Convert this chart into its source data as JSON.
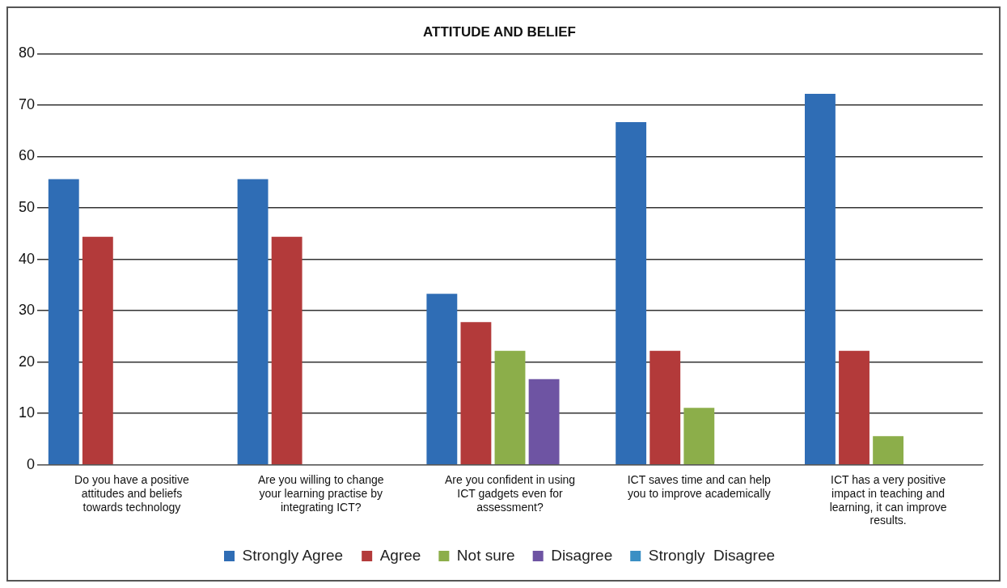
{
  "chart_data": {
    "type": "bar",
    "title": "ATTITUDE AND BELIEF",
    "categories": [
      "Do you have a positive attitudes and beliefs towards technology",
      "Are you willing to change your learning practise by integrating ICT?",
      "Are you confident in using ICT gadgets even for assessment?",
      "ICT saves time and can help you to improve academically",
      "ICT has a very positive impact in teaching and learning, it can improve results."
    ],
    "series": [
      {
        "name": "Strongly Agree",
        "color": "#2f6db5",
        "values": [
          55.6,
          55.6,
          33.3,
          66.7,
          72.2
        ]
      },
      {
        "name": "Agree",
        "color": "#b33a3a",
        "values": [
          44.4,
          44.4,
          27.8,
          22.2,
          22.2
        ]
      },
      {
        "name": "Not sure",
        "color": "#8cae4a",
        "values": [
          null,
          null,
          22.2,
          11.1,
          5.6
        ]
      },
      {
        "name": "Disagree",
        "color": "#6e54a3",
        "values": [
          null,
          null,
          16.7,
          null,
          null
        ]
      },
      {
        "name": "Strongly  Disagree",
        "color": "#3a8fc4",
        "values": [
          null,
          null,
          null,
          null,
          null
        ]
      }
    ],
    "ylim": [
      0,
      80
    ],
    "yticks": [
      0,
      10,
      20,
      30,
      40,
      50,
      60,
      70,
      80
    ],
    "grid": "y",
    "legend": "bottom"
  }
}
